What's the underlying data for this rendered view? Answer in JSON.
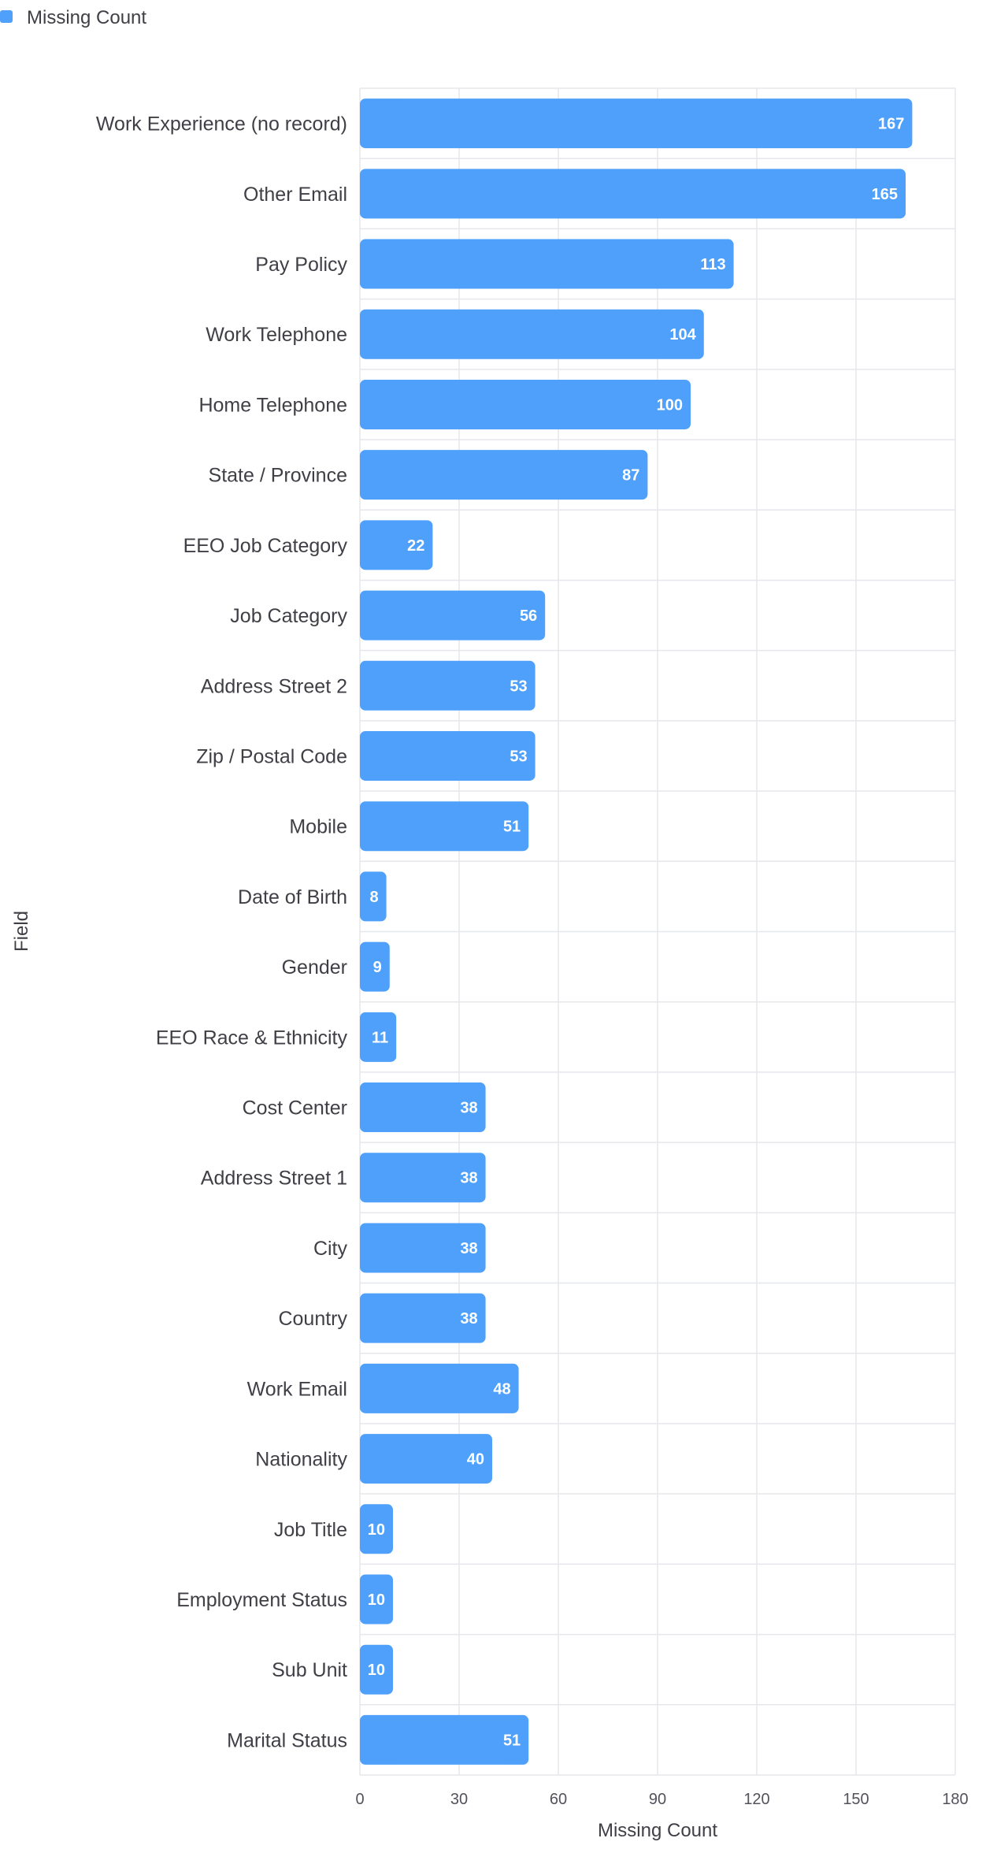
{
  "chart_data": {
    "type": "bar",
    "orientation": "horizontal",
    "legend": {
      "placement": "top-left",
      "entries": [
        "Missing Count"
      ]
    },
    "categories": [
      "Work Experience (no record)",
      "Other Email",
      "Pay Policy",
      "Work Telephone",
      "Home Telephone",
      "State / Province",
      "EEO Job Category",
      "Job Category",
      "Address Street 2",
      "Zip / Postal Code",
      "Mobile",
      "Date of Birth",
      "Gender",
      "EEO Race & Ethnicity",
      "Cost Center",
      "Address Street 1",
      "City",
      "Country",
      "Work Email",
      "Nationality",
      "Job Title",
      "Employment Status",
      "Sub Unit",
      "Marital Status"
    ],
    "series": [
      {
        "name": "Missing Count",
        "color": "#4fa0fa",
        "values": [
          167,
          165,
          113,
          104,
          100,
          87,
          22,
          56,
          53,
          53,
          51,
          8,
          9,
          11,
          38,
          38,
          38,
          38,
          48,
          40,
          10,
          10,
          10,
          51
        ]
      }
    ],
    "xlabel": "Missing Count",
    "ylabel": "Field",
    "xlim": [
      0,
      180
    ],
    "xticks": [
      "0",
      "30",
      "60",
      "90",
      "120",
      "150",
      "180"
    ],
    "grid": true
  }
}
